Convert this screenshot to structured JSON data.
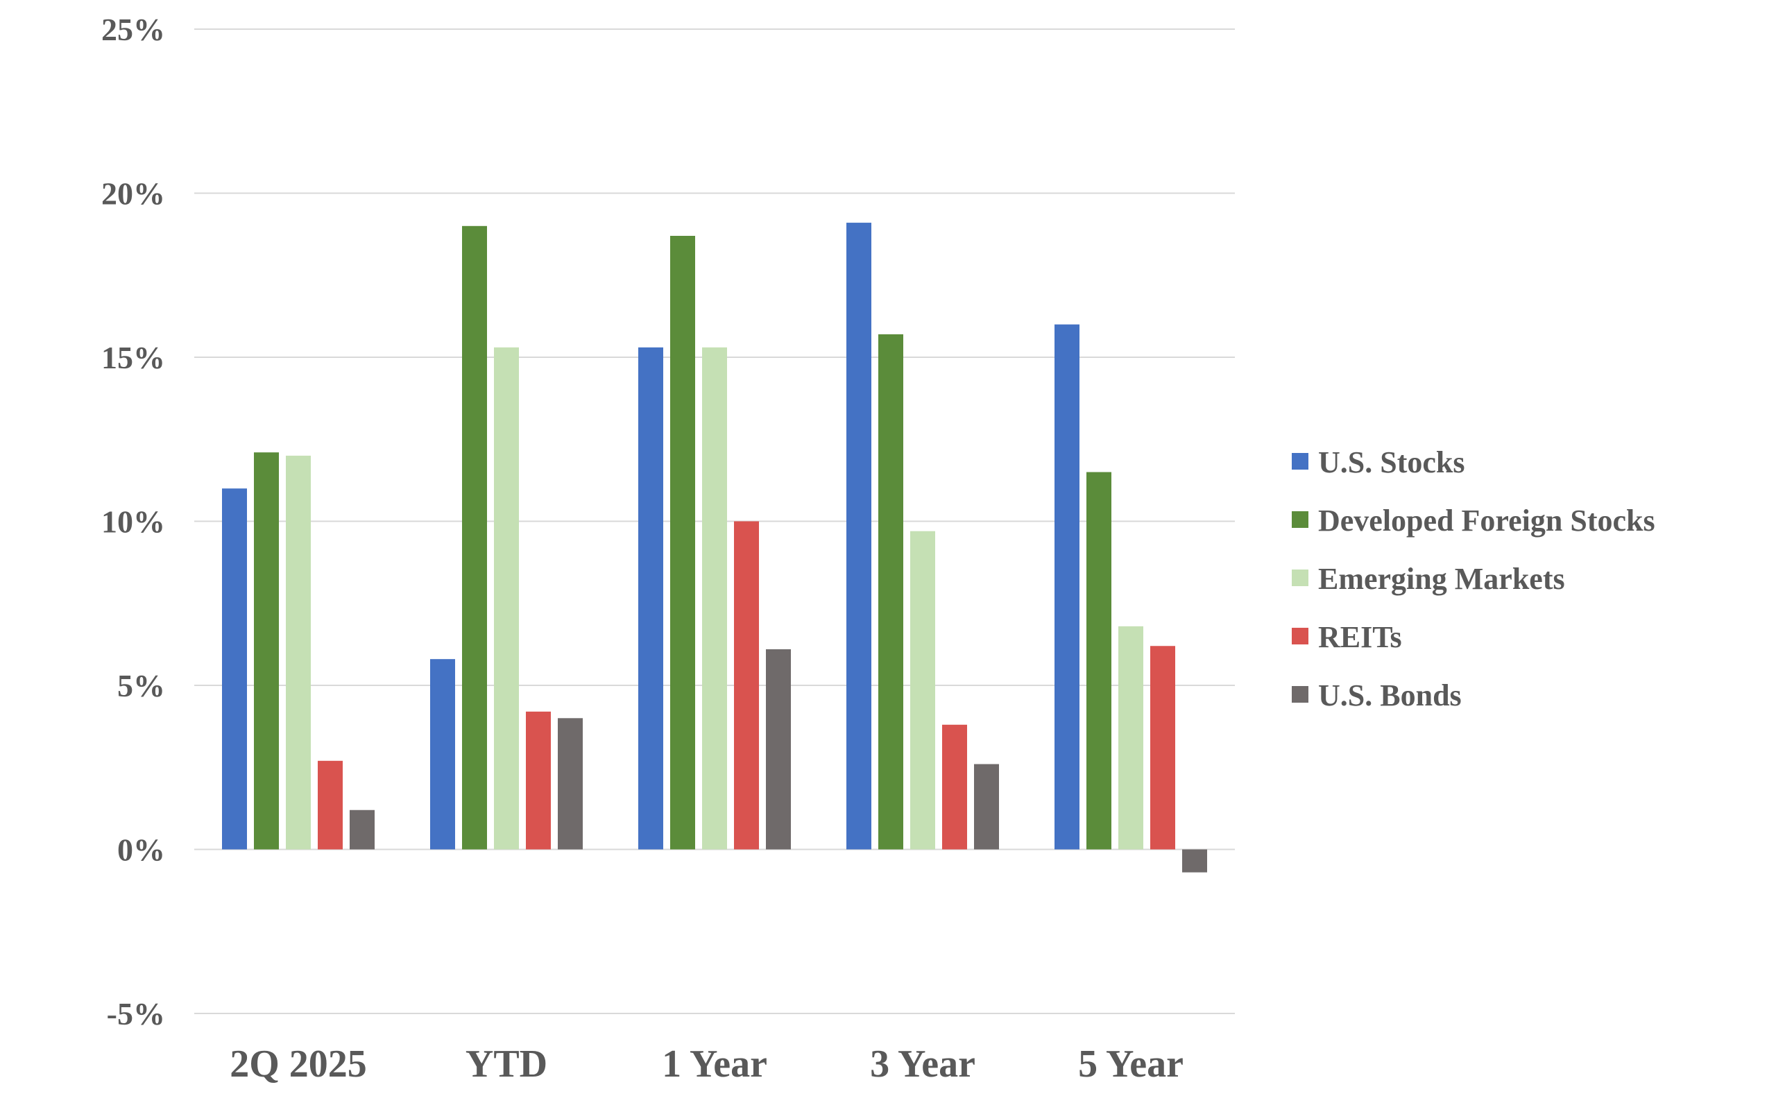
{
  "chart_data": {
    "type": "bar",
    "title": "",
    "xlabel": "",
    "ylabel": "",
    "categories": [
      "2Q 2025",
      "YTD",
      "1 Year",
      "3 Year",
      "5 Year"
    ],
    "ylim": [
      -5,
      25
    ],
    "yticks": [
      25,
      20,
      15,
      10,
      5,
      0,
      -5
    ],
    "ytick_labels": [
      "25%",
      "20%",
      "15%",
      "10%",
      "5%",
      "0%",
      "-5%"
    ],
    "grid": true,
    "legend_position": "right",
    "series": [
      {
        "name": "U.S. Stocks",
        "color": "#4472c4",
        "values": [
          11.0,
          5.8,
          15.3,
          19.1,
          16.0
        ]
      },
      {
        "name": "Developed Foreign Stocks",
        "color": "#5b8c3a",
        "values": [
          12.1,
          19.0,
          18.7,
          15.7,
          11.5
        ]
      },
      {
        "name": "Emerging Markets",
        "color": "#c5e0b4",
        "values": [
          12.0,
          15.3,
          15.3,
          9.7,
          6.8
        ]
      },
      {
        "name": "REITs",
        "color": "#d9534f",
        "values": [
          2.7,
          4.2,
          10.0,
          3.8,
          6.2
        ]
      },
      {
        "name": "U.S. Bonds",
        "color": "#6f6a6a",
        "values": [
          1.2,
          4.0,
          6.1,
          2.6,
          -0.7
        ]
      }
    ]
  }
}
